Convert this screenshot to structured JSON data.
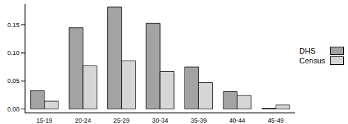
{
  "chart_data": {
    "type": "bar",
    "categories": [
      "15-19",
      "20-24",
      "25-29",
      "30-34",
      "35-39",
      "40-44",
      "45-49"
    ],
    "series": [
      {
        "name": "DHS",
        "color": "#a3a3a3",
        "values": [
          0.033,
          0.145,
          0.182,
          0.153,
          0.075,
          0.031,
          0.001
        ]
      },
      {
        "name": "Census",
        "color": "#d6d6d6",
        "values": [
          0.014,
          0.077,
          0.086,
          0.067,
          0.047,
          0.024,
          0.007
        ]
      }
    ],
    "ylim": [
      -0.007,
      0.187
    ],
    "yticks": [
      {
        "value": 0,
        "label": "0.00"
      },
      {
        "value": 0.05,
        "label": "0.05"
      },
      {
        "value": 0.1,
        "label": "0.10"
      },
      {
        "value": 0.15,
        "label": "0.15"
      }
    ],
    "grid": false,
    "legend": "right"
  }
}
